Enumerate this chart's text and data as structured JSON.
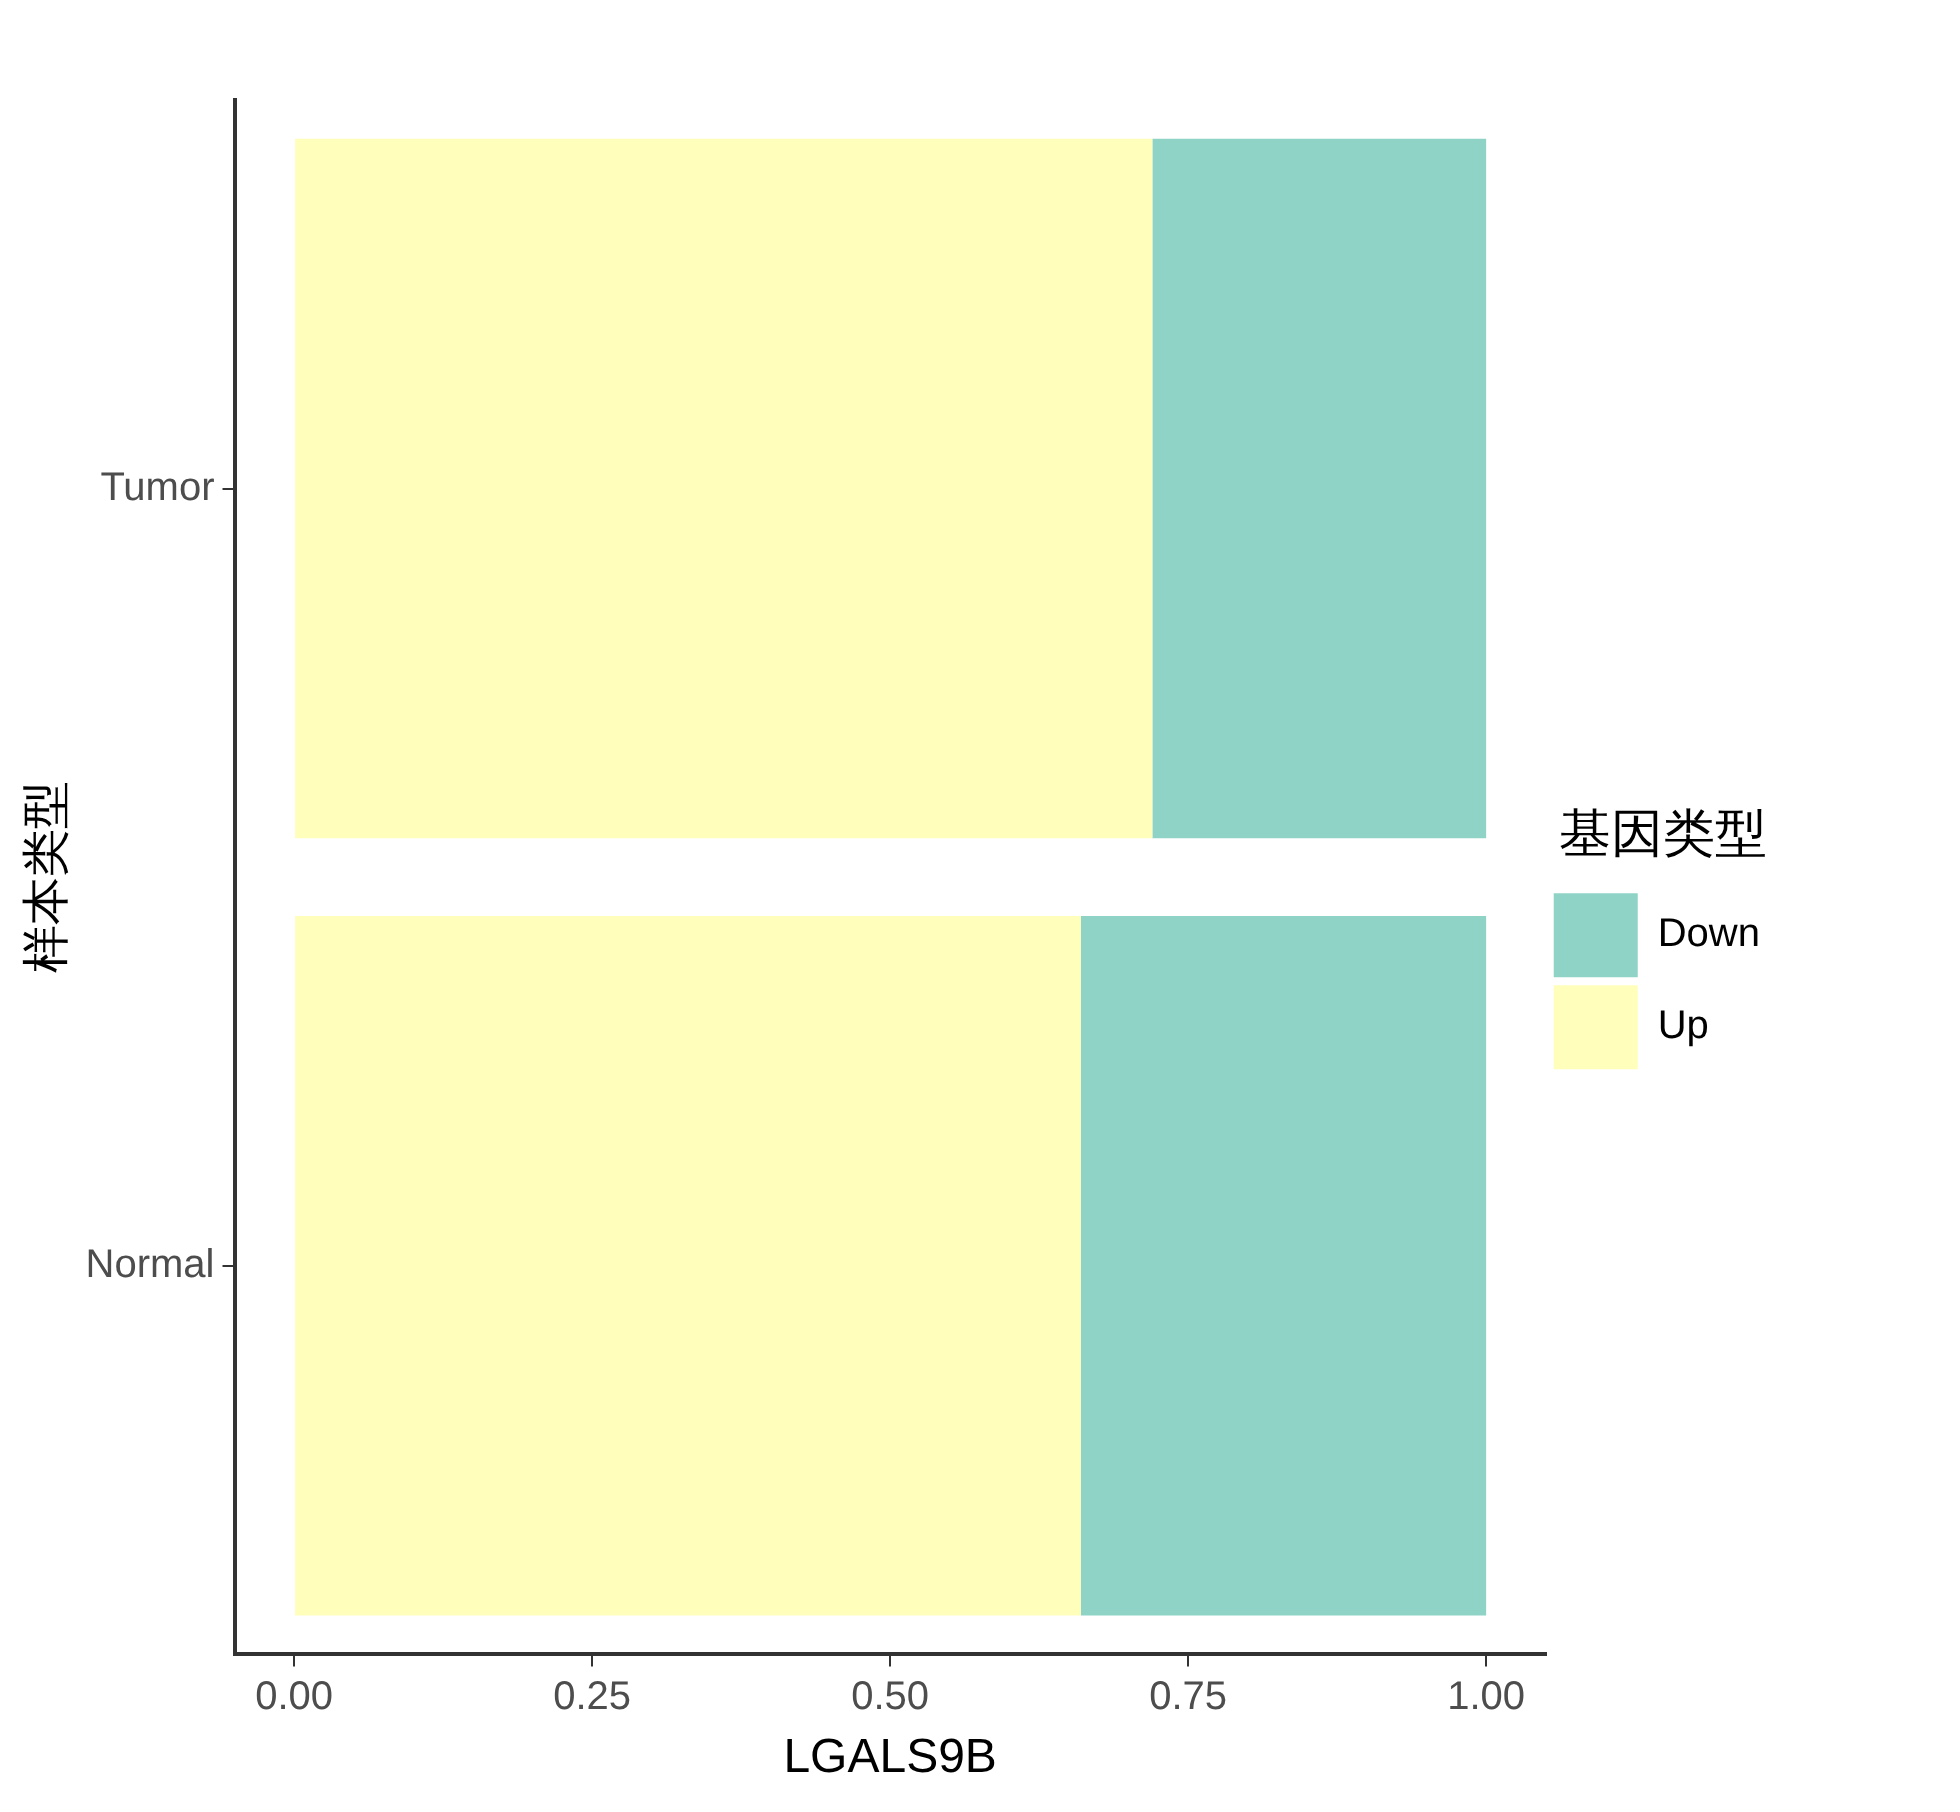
{
  "chart_data": {
    "type": "bar",
    "orientation": "horizontal",
    "stacked": true,
    "xlabel": "LGALS9B",
    "ylabel": "样本类型",
    "legend_title": "基因类型",
    "legend": "right",
    "categories": [
      "Tumor",
      "Normal"
    ],
    "series": [
      {
        "name": "Up",
        "color": "#ffffbb",
        "values": [
          0.72,
          0.66
        ]
      },
      {
        "name": "Down",
        "color": "#8fd3c7",
        "values": [
          0.28,
          0.34
        ]
      }
    ],
    "xlim": [
      -0.05,
      1.05
    ],
    "xticks": [
      {
        "value": 0,
        "label": "0.00"
      },
      {
        "value": 0.25,
        "label": "0.25"
      },
      {
        "value": 0.5,
        "label": "0.50"
      },
      {
        "value": 0.75,
        "label": "0.75"
      },
      {
        "value": 1,
        "label": "1.00"
      }
    ],
    "grid": false
  }
}
